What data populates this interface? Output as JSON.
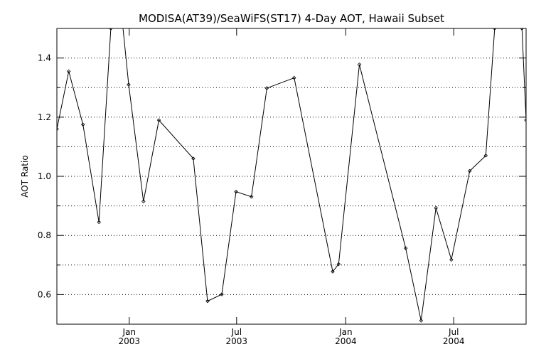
{
  "chart_data": {
    "type": "line",
    "title": "MODISA(AT39)/SeaWiFS(ST17) 4-Day AOT, Hawaii Subset",
    "xlabel": "",
    "ylabel": "AOT Ratio",
    "ylim": [
      0.5,
      1.5
    ],
    "xlim": [
      "2002-09-01",
      "2004-10-31"
    ],
    "y_ticks": [
      "0.6",
      "0.8",
      "1.0",
      "1.2",
      "1.4"
    ],
    "x_ticks": [
      {
        "date": "2003-01-01",
        "label1": "Jan",
        "label2": "2003"
      },
      {
        "date": "2003-07-01",
        "label1": "Jul",
        "label2": "2003"
      },
      {
        "date": "2004-01-01",
        "label1": "Jan",
        "label2": "2004"
      },
      {
        "date": "2004-07-01",
        "label1": "Jul",
        "label2": "2004"
      }
    ],
    "grid": "horizontal dotted",
    "line_color": "#000000",
    "series": [
      {
        "name": "",
        "x": [
          "2002-09-01",
          "2002-09-21",
          "2002-10-15",
          "2002-11-11",
          "2002-12-01",
          "2002-12-21",
          "2002-12-31",
          "2003-01-25",
          "2003-02-20",
          "2003-04-19",
          "2003-05-13",
          "2003-06-06",
          "2003-06-30",
          "2003-07-26",
          "2003-08-21",
          "2003-10-06",
          "2003-12-10",
          "2003-12-20",
          "2004-01-24",
          "2004-04-11",
          "2004-05-07",
          "2004-06-01",
          "2004-06-27",
          "2004-07-28",
          "2004-08-24",
          "2004-09-08",
          "2004-10-24",
          "2004-10-31"
        ],
        "y": [
          1.16,
          1.355,
          1.175,
          0.845,
          1.5,
          1.51,
          1.31,
          0.915,
          1.19,
          1.06,
          0.578,
          0.601,
          0.948,
          0.931,
          1.298,
          1.333,
          0.678,
          0.703,
          1.378,
          0.757,
          0.512,
          0.893,
          0.718,
          1.018,
          1.07,
          1.5,
          1.5,
          1.19
        ]
      }
    ]
  }
}
